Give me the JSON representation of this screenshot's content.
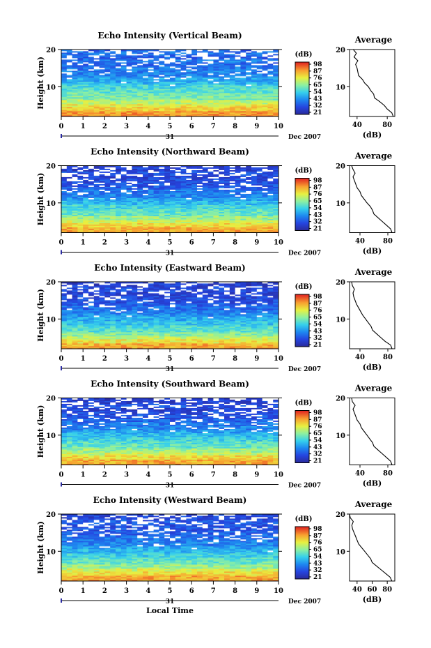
{
  "chart_data": [
    {
      "type": "heatmap",
      "title": "Echo Intensity (Vertical Beam)",
      "ylabel": "Height (km)",
      "yticks": [
        "20",
        "10"
      ],
      "xticks": [
        "0",
        "1",
        "2",
        "3",
        "4",
        "5",
        "6",
        "7",
        "8",
        "9",
        "10"
      ],
      "ylim": [
        2,
        20
      ],
      "xlim": [
        0,
        10
      ],
      "date_day": "31",
      "date_month": "Dec 2007",
      "colorbar": {
        "unit": "(dB)",
        "ticks": [
          "98",
          "87",
          "76",
          "65",
          "54",
          "43",
          "32",
          "21"
        ]
      },
      "profile": {
        "title": "Average",
        "xlabel": "(dB)",
        "xticks": [
          "40",
          "80"
        ],
        "xlim": [
          30,
          90
        ],
        "yticks": [
          "20",
          "10"
        ],
        "height_km": [
          2,
          3,
          4,
          5,
          6,
          7,
          8,
          9,
          10,
          11,
          12,
          13,
          14,
          15,
          16,
          17,
          18,
          19,
          20
        ],
        "db": [
          88,
          86,
          80,
          76,
          70,
          63,
          62,
          58,
          55,
          50,
          47,
          42,
          41,
          40,
          38,
          41,
          36,
          39,
          35
        ]
      }
    },
    {
      "type": "heatmap",
      "title": "Echo Intensity (Northward Beam)",
      "ylabel": "Height (km)",
      "yticks": [
        "20",
        "10"
      ],
      "xticks": [
        "0",
        "1",
        "2",
        "3",
        "4",
        "5",
        "6",
        "7",
        "8",
        "9",
        "10"
      ],
      "ylim": [
        2,
        20
      ],
      "xlim": [
        0,
        10
      ],
      "date_day": "31",
      "date_month": "Dec 2007",
      "colorbar": {
        "unit": "(dB)",
        "ticks": [
          "98",
          "87",
          "76",
          "65",
          "54",
          "43",
          "32",
          "21"
        ]
      },
      "profile": {
        "title": "Average",
        "xlabel": "(dB)",
        "xticks": [
          "40",
          "80"
        ],
        "xlim": [
          25,
          90
        ],
        "yticks": [
          "20",
          "10"
        ],
        "height_km": [
          2,
          3,
          4,
          5,
          6,
          7,
          8,
          9,
          10,
          11,
          12,
          13,
          14,
          15,
          16,
          17,
          18,
          19,
          20
        ],
        "db": [
          86,
          84,
          78,
          72,
          66,
          60,
          58,
          55,
          50,
          46,
          42,
          40,
          36,
          34,
          32,
          30,
          33,
          30,
          28
        ]
      }
    },
    {
      "type": "heatmap",
      "title": "Echo Intensity (Eastward Beam)",
      "ylabel": "Height (km)",
      "yticks": [
        "20",
        "10"
      ],
      "xticks": [
        "0",
        "1",
        "2",
        "3",
        "4",
        "5",
        "6",
        "7",
        "8",
        "9",
        "10"
      ],
      "ylim": [
        2,
        20
      ],
      "xlim": [
        0,
        10
      ],
      "date_day": "31",
      "date_month": "Dec 2007",
      "colorbar": {
        "unit": "(dB)",
        "ticks": [
          "98",
          "87",
          "76",
          "65",
          "54",
          "43",
          "32",
          "21"
        ]
      },
      "profile": {
        "title": "Average",
        "xlabel": "(dB)",
        "xticks": [
          "40",
          "80"
        ],
        "xlim": [
          25,
          90
        ],
        "yticks": [
          "20",
          "10"
        ],
        "height_km": [
          2,
          3,
          4,
          5,
          6,
          7,
          8,
          9,
          10,
          11,
          12,
          13,
          14,
          15,
          16,
          17,
          18,
          19,
          20
        ],
        "db": [
          86,
          84,
          76,
          70,
          64,
          58,
          56,
          52,
          48,
          44,
          41,
          38,
          35,
          33,
          31,
          30,
          32,
          29,
          28
        ]
      }
    },
    {
      "type": "heatmap",
      "title": "Echo Intensity (Southward Beam)",
      "ylabel": "Height (km)",
      "yticks": [
        "20",
        "10"
      ],
      "xticks": [
        "0",
        "1",
        "2",
        "3",
        "4",
        "5",
        "6",
        "7",
        "8",
        "9",
        "10"
      ],
      "ylim": [
        2,
        20
      ],
      "xlim": [
        0,
        10
      ],
      "date_day": "31",
      "date_month": "Dec 2007",
      "colorbar": {
        "unit": "(dB)",
        "ticks": [
          "98",
          "87",
          "76",
          "65",
          "54",
          "43",
          "32",
          "21"
        ]
      },
      "profile": {
        "title": "Average",
        "xlabel": "(dB)",
        "xticks": [
          "40",
          "80"
        ],
        "xlim": [
          25,
          90
        ],
        "yticks": [
          "20",
          "10"
        ],
        "height_km": [
          2,
          3,
          4,
          5,
          6,
          7,
          8,
          9,
          10,
          11,
          12,
          13,
          14,
          15,
          16,
          17,
          18,
          19,
          20
        ],
        "db": [
          86,
          84,
          78,
          72,
          66,
          60,
          58,
          54,
          50,
          46,
          42,
          40,
          36,
          34,
          32,
          30,
          33,
          29,
          28
        ]
      }
    },
    {
      "type": "heatmap",
      "title": "Echo Intensity (Westward Beam)",
      "ylabel": "Height (km)",
      "yticks": [
        "20",
        "10"
      ],
      "xticks": [
        "0",
        "1",
        "2",
        "3",
        "4",
        "5",
        "6",
        "7",
        "8",
        "9",
        "10"
      ],
      "ylim": [
        2,
        20
      ],
      "xlim": [
        0,
        10
      ],
      "date_day": "31",
      "date_month": "Dec 2007",
      "colorbar": {
        "unit": "(dB)",
        "ticks": [
          "98",
          "87",
          "76",
          "65",
          "54",
          "43",
          "32",
          "21"
        ]
      },
      "profile": {
        "title": "Average",
        "xlabel": "(dB)",
        "xticks": [
          "40",
          "60",
          "80"
        ],
        "xlim": [
          30,
          90
        ],
        "yticks": [
          "20",
          "10"
        ],
        "height_km": [
          2,
          3,
          4,
          5,
          6,
          7,
          8,
          9,
          10,
          11,
          12,
          13,
          14,
          15,
          16,
          17,
          18,
          19,
          20
        ],
        "db": [
          86,
          84,
          78,
          72,
          66,
          60,
          58,
          54,
          50,
          46,
          42,
          40,
          38,
          36,
          34,
          33,
          35,
          31,
          30
        ]
      }
    }
  ],
  "xlabel": "Local Time"
}
